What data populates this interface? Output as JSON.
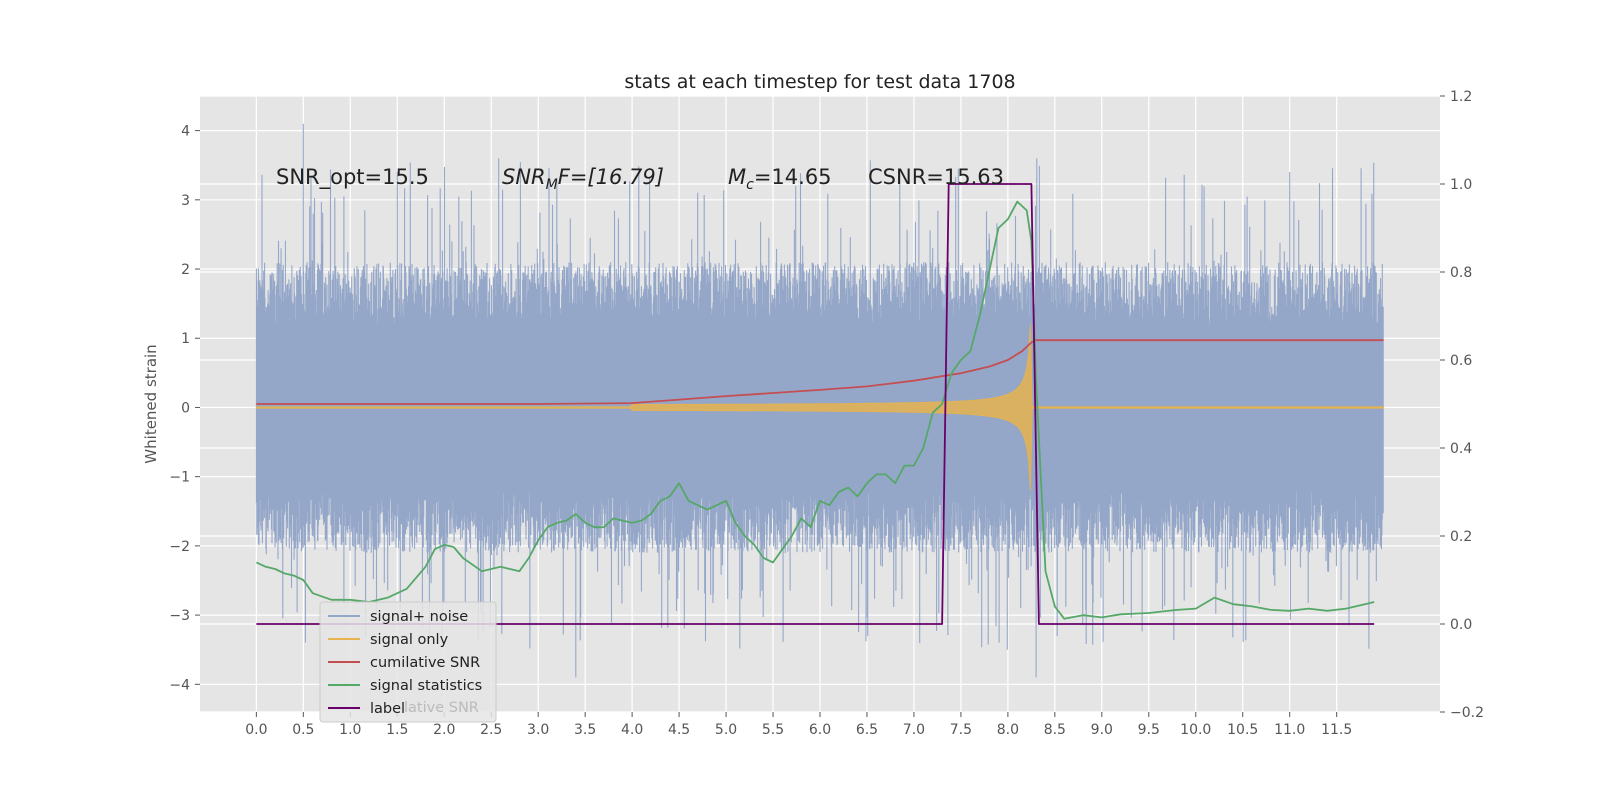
{
  "chart_data": {
    "type": "line",
    "title": "stats at each timestep for test data 1708",
    "xlabel": "",
    "ylabel": "Whitened strain",
    "y2label": "",
    "xlim": [
      -0.6,
      12.6
    ],
    "ylim": [
      -4.4,
      4.5
    ],
    "y2lim": [
      -0.2,
      1.2
    ],
    "x_ticks": [
      0.0,
      0.5,
      1.0,
      1.5,
      2.0,
      2.5,
      3.0,
      3.5,
      4.0,
      4.5,
      5.0,
      5.5,
      6.0,
      6.5,
      7.0,
      7.5,
      8.0,
      8.5,
      9.0,
      9.5,
      10.0,
      10.5,
      11.0,
      11.5
    ],
    "x_tick_labels": [
      "0.0",
      "0.5",
      "1.0",
      "1.5",
      "2.0",
      "2.5",
      "3.0",
      "3.5",
      "4.0",
      "4.5",
      "5.0",
      "5.5",
      "6.0",
      "6.5",
      "7.0",
      "7.5",
      "8.0",
      "8.5",
      "9.0",
      "9.5",
      "10.0",
      "10.5",
      "11.0",
      "11.5"
    ],
    "y_ticks": [
      -4,
      -3,
      -2,
      -1,
      0,
      1,
      2,
      3,
      4
    ],
    "y_tick_labels": [
      "−4",
      "−3",
      "−2",
      "−1",
      "0",
      "1",
      "2",
      "3",
      "4"
    ],
    "y2_ticks": [
      -0.2,
      0.0,
      0.2,
      0.4,
      0.6,
      0.8,
      1.0,
      1.2
    ],
    "y2_tick_labels": [
      "−0.2",
      "0.0",
      "0.2",
      "0.4",
      "0.6",
      "0.8",
      "1.0",
      "1.2"
    ],
    "grid": true,
    "legend_position": "lower-left",
    "annotations": [
      {
        "text": "SNR_opt=15.5",
        "x": 0.2,
        "y": 3.3
      },
      {
        "text_italic": "SNR",
        "text_sub": "M",
        "text_rest": "F=[16.79]",
        "x": 2.6,
        "y": 3.3
      },
      {
        "text_italic": "M",
        "text_sub": "c",
        "text_rest": "=14.65",
        "x": 5.0,
        "y": 3.3
      },
      {
        "text": "CSNR=15.63",
        "x": 6.5,
        "y": 3.3
      }
    ],
    "series": [
      {
        "name": "signal+ noise",
        "axis": "left",
        "color": "#95a7c9",
        "kind": "noise",
        "x_range": [
          0.0,
          12.0
        ],
        "typical_range": [
          -2.0,
          2.0
        ],
        "peak_max": 4.1,
        "peak_min": -3.9
      },
      {
        "name": "signal only",
        "axis": "left",
        "color": "#e6b34e",
        "kind": "chirp",
        "x_range": [
          0.0,
          12.0
        ],
        "onset": 4.0,
        "merger": 8.25,
        "peak_amplitude": 1.7
      },
      {
        "name": "cumilative SNR",
        "axis": "right",
        "color": "#c44e52",
        "x": [
          0.0,
          1.0,
          2.0,
          3.0,
          4.0,
          4.5,
          5.0,
          5.5,
          6.0,
          6.5,
          7.0,
          7.5,
          7.8,
          8.0,
          8.15,
          8.25,
          8.3,
          12.0
        ],
        "values": [
          0.5,
          0.5,
          0.5,
          0.5,
          0.502,
          0.51,
          0.518,
          0.525,
          0.532,
          0.54,
          0.553,
          0.57,
          0.585,
          0.6,
          0.62,
          0.64,
          0.645,
          0.645
        ]
      },
      {
        "name": "signal statistics",
        "axis": "right",
        "color": "#55a868",
        "x": [
          0.0,
          0.1,
          0.2,
          0.3,
          0.4,
          0.5,
          0.6,
          0.8,
          1.0,
          1.2,
          1.4,
          1.6,
          1.8,
          1.9,
          2.0,
          2.1,
          2.2,
          2.4,
          2.6,
          2.8,
          2.9,
          3.0,
          3.1,
          3.2,
          3.3,
          3.4,
          3.5,
          3.6,
          3.7,
          3.8,
          3.9,
          4.0,
          4.1,
          4.2,
          4.3,
          4.4,
          4.5,
          4.6,
          4.7,
          4.8,
          4.9,
          5.0,
          5.1,
          5.2,
          5.3,
          5.4,
          5.5,
          5.6,
          5.7,
          5.8,
          5.9,
          6.0,
          6.1,
          6.2,
          6.3,
          6.4,
          6.5,
          6.6,
          6.7,
          6.8,
          6.9,
          7.0,
          7.1,
          7.2,
          7.3,
          7.4,
          7.5,
          7.6,
          7.7,
          7.8,
          7.9,
          8.0,
          8.1,
          8.2,
          8.25,
          8.3,
          8.4,
          8.5,
          8.6,
          8.8,
          9.0,
          9.2,
          9.5,
          9.8,
          10.0,
          10.2,
          10.4,
          10.6,
          10.8,
          11.0,
          11.2,
          11.4,
          11.6,
          11.8,
          11.9
        ],
        "values": [
          0.14,
          0.13,
          0.125,
          0.115,
          0.11,
          0.1,
          0.07,
          0.055,
          0.055,
          0.05,
          0.06,
          0.08,
          0.13,
          0.17,
          0.18,
          0.175,
          0.15,
          0.12,
          0.13,
          0.12,
          0.15,
          0.19,
          0.22,
          0.23,
          0.235,
          0.25,
          0.23,
          0.22,
          0.22,
          0.24,
          0.235,
          0.23,
          0.235,
          0.25,
          0.28,
          0.29,
          0.32,
          0.28,
          0.27,
          0.26,
          0.27,
          0.28,
          0.23,
          0.2,
          0.18,
          0.15,
          0.14,
          0.17,
          0.2,
          0.24,
          0.22,
          0.28,
          0.27,
          0.3,
          0.31,
          0.29,
          0.32,
          0.34,
          0.34,
          0.32,
          0.36,
          0.36,
          0.4,
          0.48,
          0.5,
          0.57,
          0.6,
          0.62,
          0.7,
          0.8,
          0.9,
          0.92,
          0.96,
          0.94,
          0.87,
          0.55,
          0.12,
          0.04,
          0.012,
          0.02,
          0.015,
          0.022,
          0.025,
          0.032,
          0.035,
          0.06,
          0.045,
          0.04,
          0.032,
          0.03,
          0.035,
          0.03,
          0.035,
          0.045,
          0.05
        ]
      },
      {
        "name": "label",
        "axis": "right",
        "color": "#6a006a",
        "x": [
          0.0,
          7.3,
          7.37,
          8.25,
          8.33,
          11.9
        ],
        "values": [
          0.0,
          0.0,
          1.0,
          1.0,
          0.0,
          0.0
        ]
      }
    ],
    "legend_overlap_text": "lative SNR"
  }
}
